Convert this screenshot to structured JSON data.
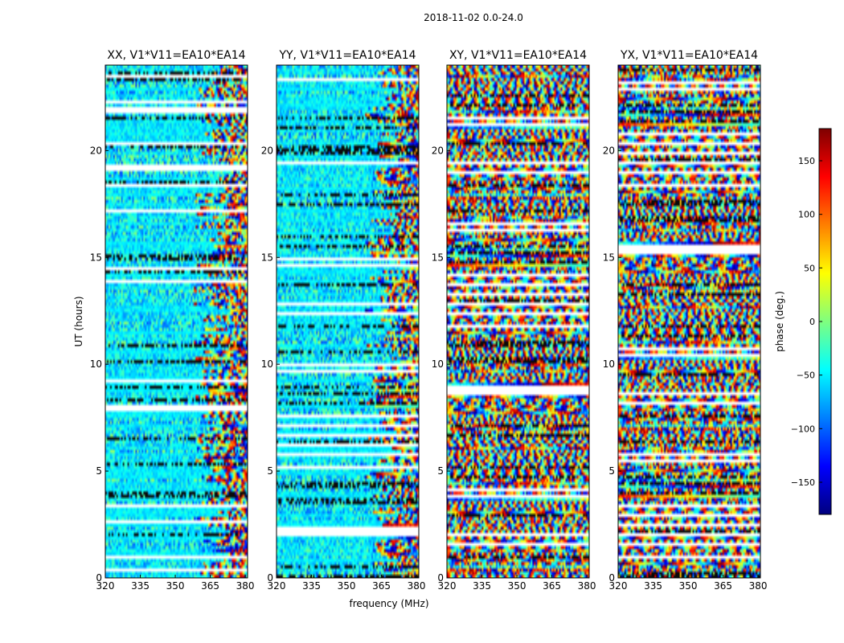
{
  "figure": {
    "suptitle": "2018-11-02 0.0-24.0",
    "xlabel": "frequency (MHz)",
    "ylabel": "UT (hours)"
  },
  "chart_data": {
    "type": "heatmap",
    "x": {
      "range": [
        320,
        381
      ],
      "ticks": [
        320,
        335,
        350,
        365,
        380
      ],
      "label": "frequency (MHz)"
    },
    "y": {
      "range": [
        0,
        24
      ],
      "ticks": [
        0,
        5,
        10,
        15,
        20
      ],
      "label": "UT (hours)"
    },
    "panels": [
      {
        "title": "XX, V1*V11=EA10*EA14",
        "polarization": "XX"
      },
      {
        "title": "YY, V1*V11=EA10*EA14",
        "polarization": "YY"
      },
      {
        "title": "XY, V1*V11=EA10*EA14",
        "polarization": "XY"
      },
      {
        "title": "YX, V1*V11=EA10*EA14",
        "polarization": "YX"
      }
    ],
    "colorbar": {
      "label": "phase (deg.)",
      "range": [
        -180,
        180
      ],
      "ticks": [
        -150,
        -100,
        -50,
        0,
        50,
        100,
        150
      ],
      "tick_labels": [
        "−150",
        "−100",
        "−50",
        "0",
        "50",
        "100",
        "150"
      ],
      "colormap": "jet",
      "colors": [
        "#00007f",
        "#0000ff",
        "#007fff",
        "#00ffff",
        "#7fff7f",
        "#ffff00",
        "#ff7f00",
        "#ff0000",
        "#7f0000"
      ]
    }
  }
}
